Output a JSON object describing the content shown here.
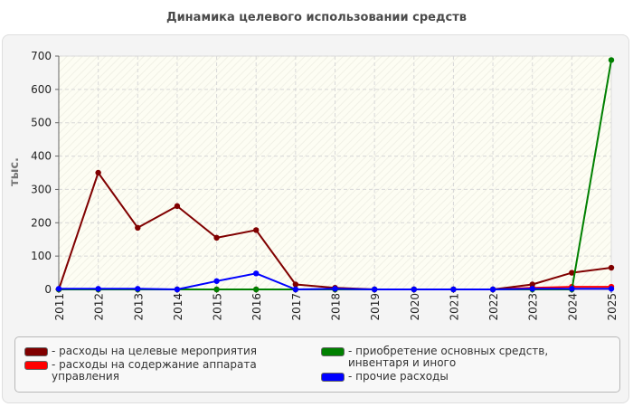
{
  "chart_data": {
    "type": "line",
    "title": "Динамика целевого использовании средств",
    "ylabel": "тыс.",
    "xlabel": "",
    "categories": [
      "2011",
      "2012",
      "2013",
      "2014",
      "2015",
      "2016",
      "2017",
      "2018",
      "2019",
      "2020",
      "2021",
      "2022",
      "2023",
      "2024",
      "2025"
    ],
    "ylim": [
      0,
      700
    ],
    "yticks": [
      0,
      100,
      200,
      300,
      400,
      500,
      600,
      700
    ],
    "grid": true,
    "legend_position": "bottom",
    "series": [
      {
        "name": "расходы на целевые мероприятия",
        "color": "#800000",
        "values": [
          0,
          350,
          185,
          250,
          155,
          178,
          15,
          5,
          0,
          0,
          0,
          0,
          15,
          50,
          65
        ]
      },
      {
        "name": "расходы на содержание аппарата управления",
        "color": "#ff0000",
        "values": [
          0,
          0,
          0,
          0,
          0,
          0,
          0,
          0,
          0,
          0,
          0,
          0,
          5,
          8,
          8
        ]
      },
      {
        "name": "приобретение основных средств, инвентаря и иного",
        "color": "#008000",
        "values": [
          0,
          0,
          0,
          0,
          0,
          0,
          0,
          0,
          0,
          0,
          0,
          0,
          0,
          0,
          688
        ]
      },
      {
        "name": "прочие расходы",
        "color": "#0000ff",
        "values": [
          2,
          2,
          2,
          0,
          25,
          48,
          0,
          2,
          0,
          0,
          0,
          0,
          2,
          2,
          2
        ]
      }
    ]
  },
  "legend": {
    "items": [
      {
        "label": "- расходы на целевые мероприятия",
        "color": "#800000"
      },
      {
        "label": "- расходы на содержание аппарата управления",
        "color": "#ff0000"
      },
      {
        "label": "- приобретение основных средств, инвентаря и иного",
        "color": "#008000"
      },
      {
        "label": "- прочие расходы",
        "color": "#0000ff"
      }
    ]
  }
}
